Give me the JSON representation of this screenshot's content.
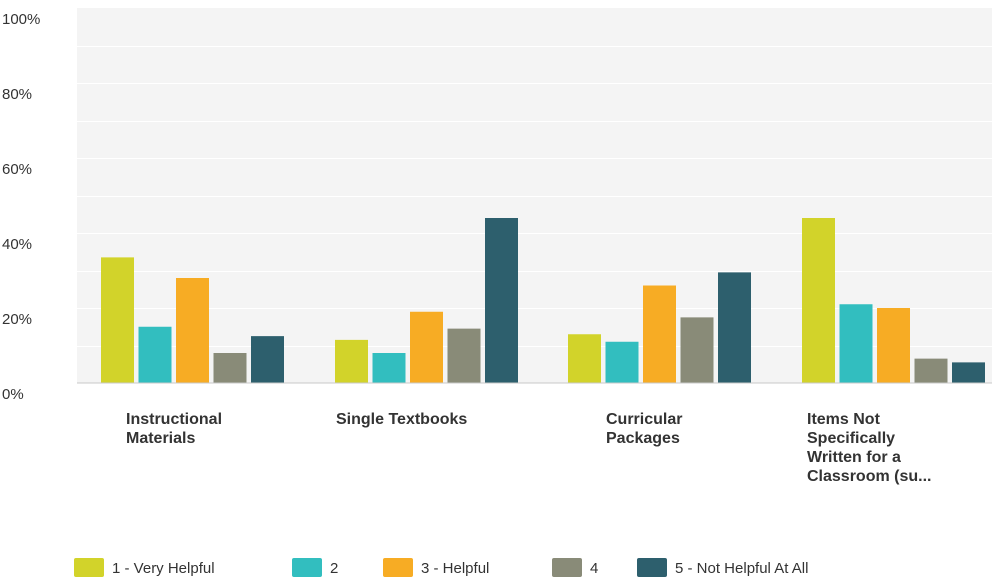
{
  "chart_data": {
    "type": "bar",
    "categories": [
      [
        "Instructional",
        "Materials"
      ],
      [
        "Single Textbooks"
      ],
      [
        "Curricular",
        "Packages"
      ],
      [
        "Items Not",
        "Specifically",
        "Written for a",
        "Classroom (su..."
      ]
    ],
    "series": [
      {
        "name": "1 - Very Helpful",
        "color": "#d2d32a",
        "values": [
          33.5,
          11.5,
          13.0,
          44.0
        ]
      },
      {
        "name": "2",
        "color": "#32bebf",
        "values": [
          15.0,
          8.0,
          11.0,
          21.0
        ]
      },
      {
        "name": "3 - Helpful",
        "color": "#f7ac24",
        "values": [
          28.0,
          19.0,
          26.0,
          20.0
        ]
      },
      {
        "name": "4",
        "color": "#898b78",
        "values": [
          8.0,
          14.5,
          17.5,
          6.5
        ]
      },
      {
        "name": "5 - Not Helpful At All",
        "color": "#2d5f6d",
        "values": [
          12.5,
          44.0,
          29.5,
          5.5
        ]
      }
    ],
    "ylim": [
      0,
      100
    ],
    "yticks": [
      "100%",
      "80%",
      "60%",
      "40%",
      "20%",
      "0%"
    ],
    "ytick_values": [
      100,
      80,
      60,
      40,
      20,
      0
    ],
    "grid": true,
    "legend_position": "bottom",
    "plot_background": "#f4f4f4",
    "grid_color": "#ffffff"
  }
}
